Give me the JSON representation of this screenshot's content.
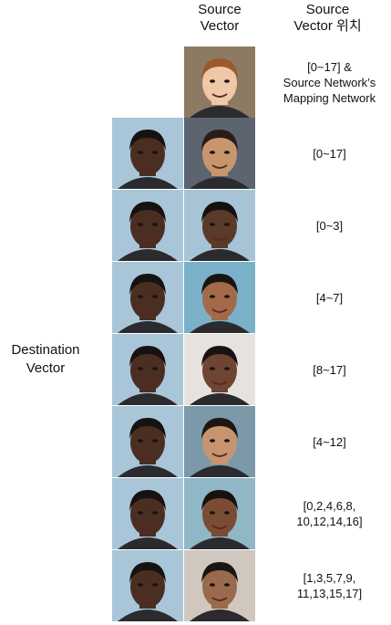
{
  "headers": {
    "source_vector": "Source\nVector",
    "source_vector_position": "Source\nVector 위치"
  },
  "destination_label": "Destination\nVector",
  "rows": [
    {
      "label": "[0~17] &\nSource Network’s\nMapping Network",
      "src_skin": "#f0c8a8",
      "src_hair": "#9a5a2a",
      "src_bg": "#8d7a63",
      "has_dest": false
    },
    {
      "label": "[0~17]",
      "src_skin": "#c8966e",
      "src_hair": "#2a1d16",
      "src_bg": "#5c6470",
      "has_dest": true
    },
    {
      "label": "[0~3]",
      "src_skin": "#5a3a28",
      "src_hair": "#141010",
      "src_bg": "#a7c3d6",
      "has_dest": true
    },
    {
      "label": "[4~7]",
      "src_skin": "#a26a48",
      "src_hair": "#1a1410",
      "src_bg": "#7ab1c9",
      "has_dest": true
    },
    {
      "label": "[8~17]",
      "src_skin": "#6e4432",
      "src_hair": "#181210",
      "src_bg": "#e6e3df",
      "has_dest": true
    },
    {
      "label": "[4~12]",
      "src_skin": "#c89470",
      "src_hair": "#1c1612",
      "src_bg": "#7b99a8",
      "has_dest": true
    },
    {
      "label": "[0,2,4,6,8,\n10,12,14,16]",
      "src_skin": "#7a4c34",
      "src_hair": "#161210",
      "src_bg": "#8fb7c6",
      "has_dest": true
    },
    {
      "label": "[1,3,5,7,9,\n11,13,15,17]",
      "src_skin": "#9a6a4e",
      "src_hair": "#1a1512",
      "src_bg": "#d0c8bf",
      "has_dest": true
    }
  ],
  "destination_face": {
    "skin": "#4a2e22",
    "hair": "#161211",
    "bg": "#a9c6d9"
  }
}
